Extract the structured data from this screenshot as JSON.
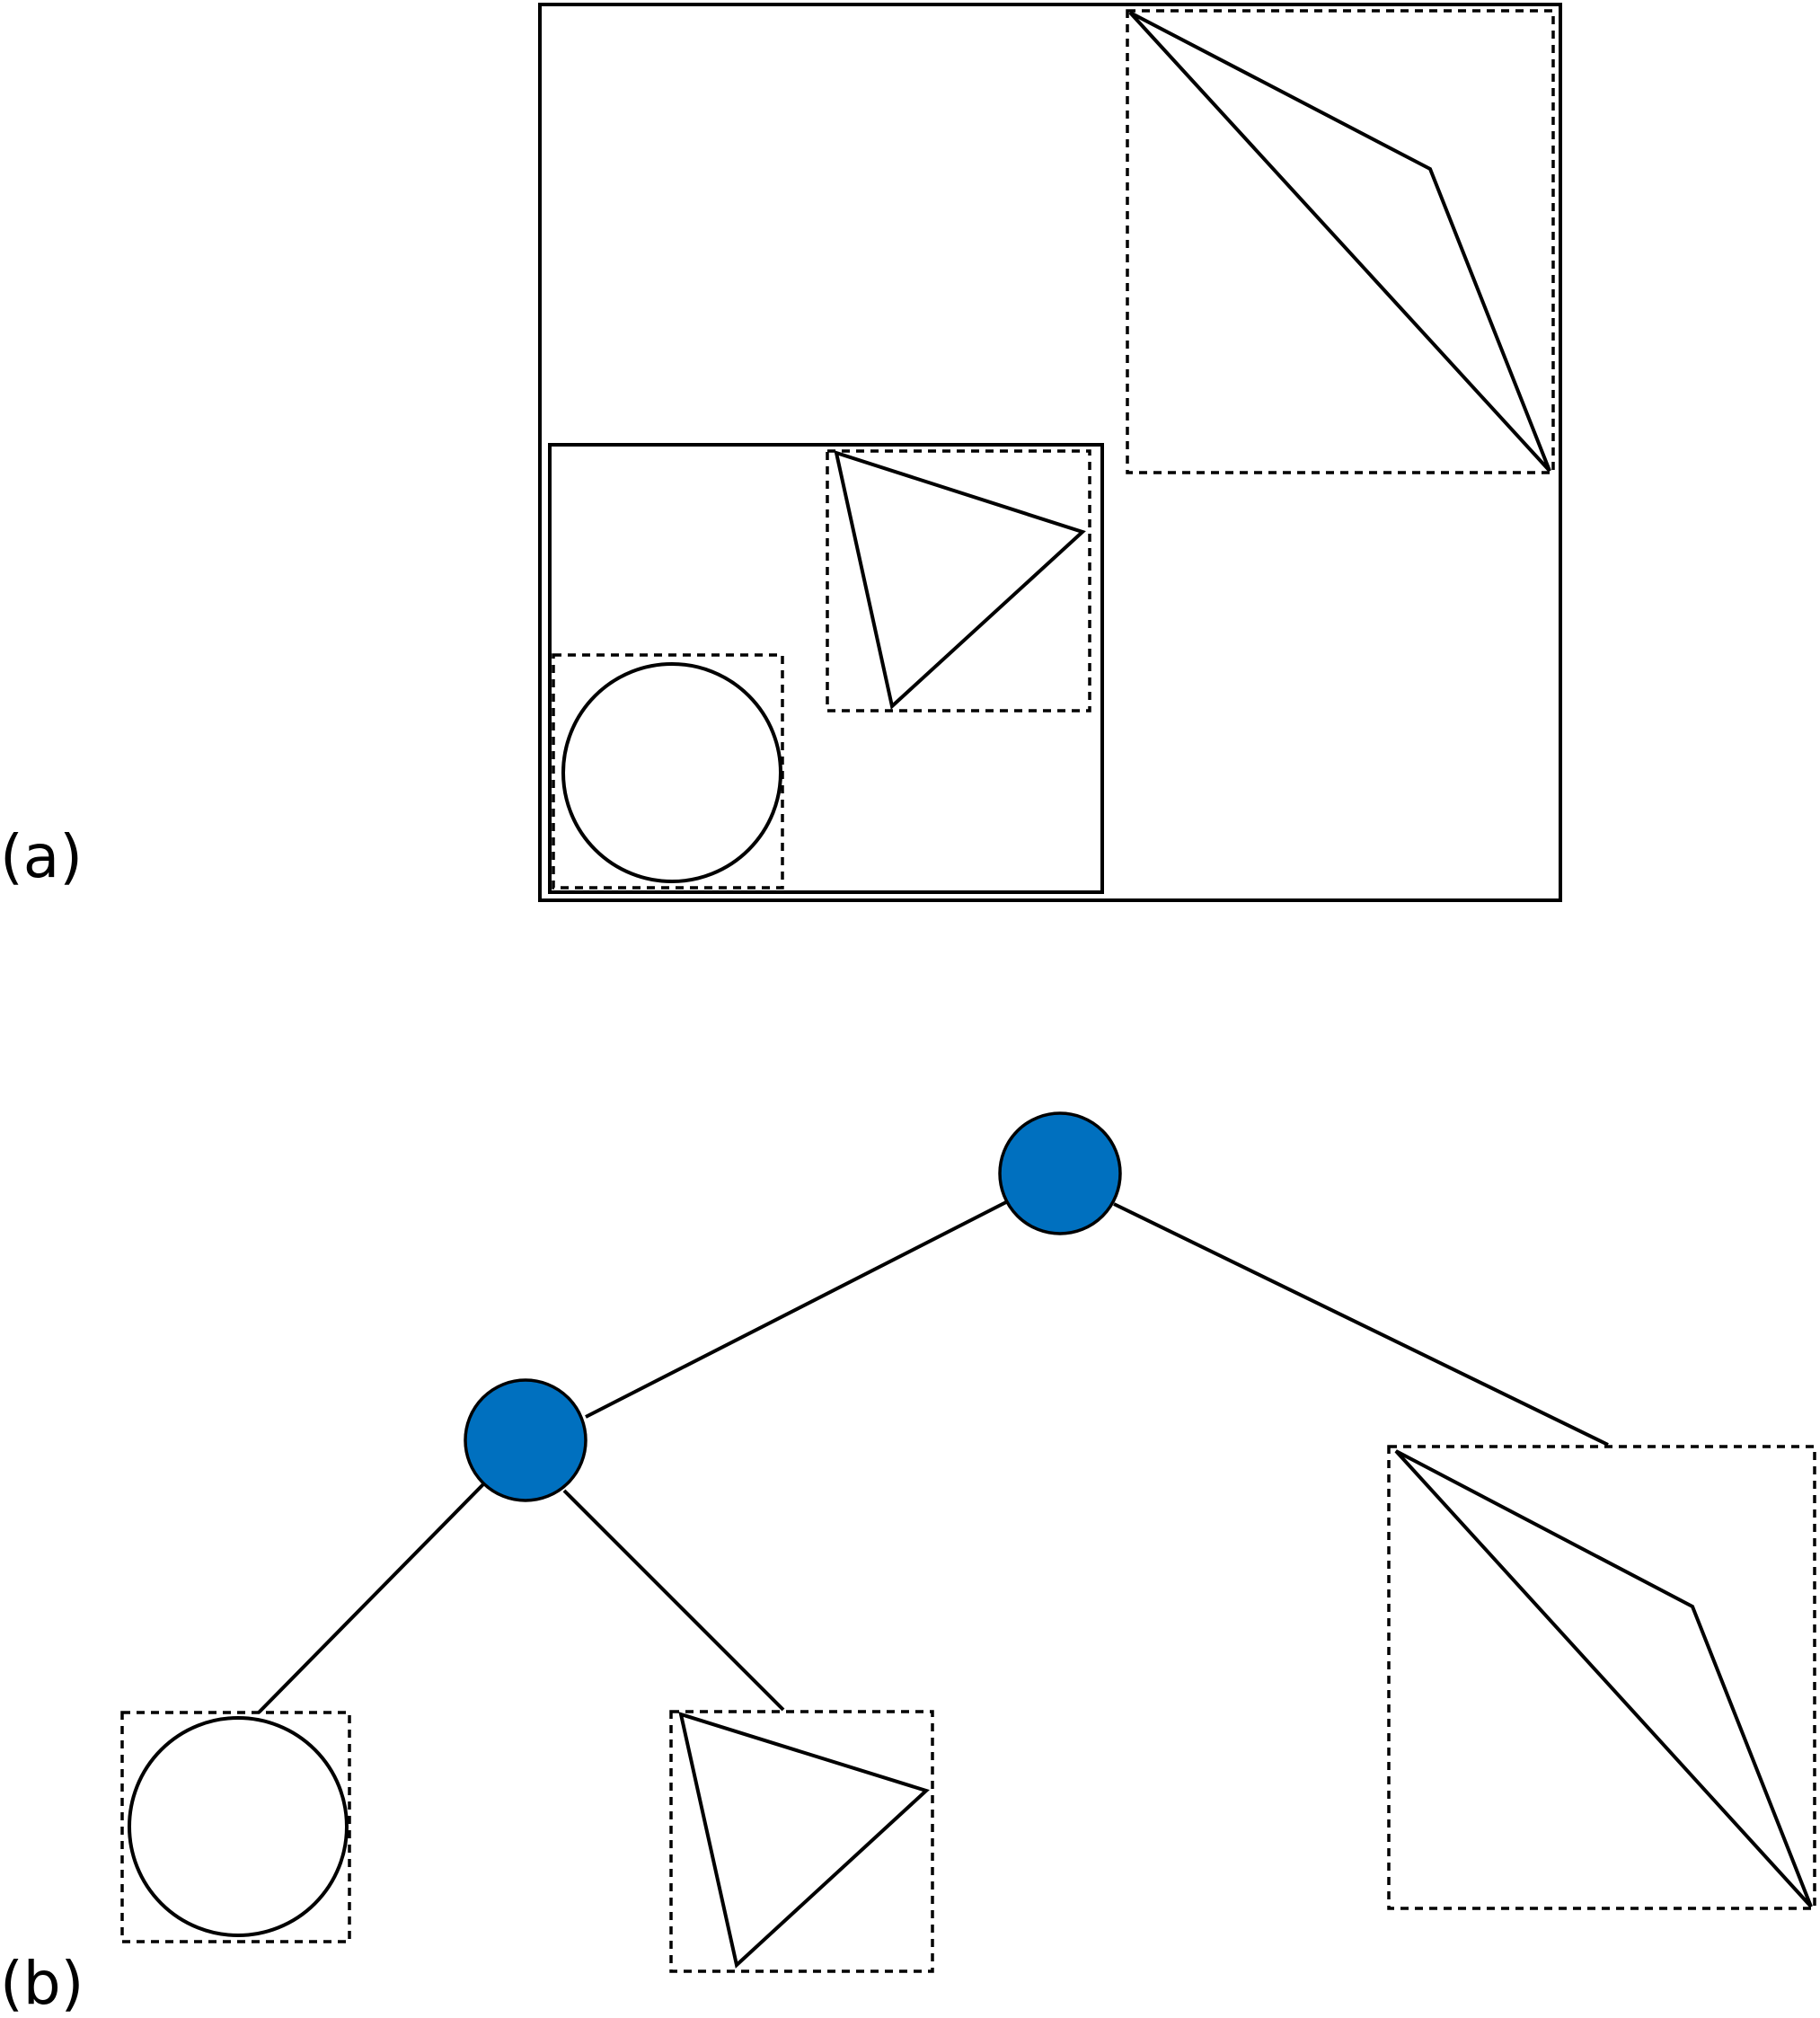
{
  "panels": {
    "a": {
      "label": "(a)"
    },
    "b": {
      "label": "(b)"
    }
  },
  "colors": {
    "stroke": "#000000",
    "node_fill": "#0070BF",
    "background": "#FFFFFF"
  },
  "tree": {
    "nodes": [
      "root",
      "inner"
    ],
    "leaves": [
      "circle-leaf",
      "triangle-leaf",
      "quadrilateral-leaf"
    ]
  }
}
